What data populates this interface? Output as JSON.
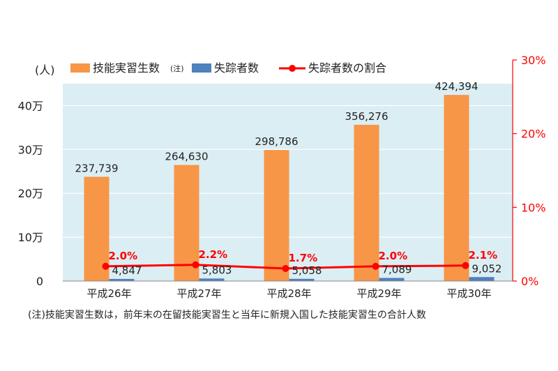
{
  "chart_data": {
    "type": "bar",
    "categories": [
      "平成26年",
      "平成27年",
      "平成28年",
      "平成29年",
      "平成30年"
    ],
    "series": [
      {
        "name": "技能実習生数",
        "name_note": "(注)",
        "values": [
          237739,
          264630,
          298786,
          356276,
          424394
        ],
        "labels": [
          "237,739",
          "264,630",
          "298,786",
          "356,276",
          "424,394"
        ],
        "color": "#f79646",
        "axis": "left"
      },
      {
        "name": "失踪者数",
        "values": [
          4847,
          5803,
          5058,
          7089,
          9052
        ],
        "labels": [
          "4,847",
          "5,803",
          "5,058",
          "7,089",
          "9,052"
        ],
        "color": "#4f81bd",
        "axis": "left"
      },
      {
        "name": "失踪者数の割合",
        "type": "line",
        "values": [
          2.0,
          2.2,
          1.7,
          2.0,
          2.1
        ],
        "labels": [
          "2.0%",
          "2.2%",
          "1.7%",
          "2.0%",
          "2.1%"
        ],
        "color": "#ff0000",
        "axis": "right"
      }
    ],
    "y_unit": "(人)",
    "ylim": [
      0,
      450000
    ],
    "yticks": [
      {
        "value": 0,
        "label": "0"
      },
      {
        "value": 100000,
        "label": "10万"
      },
      {
        "value": 200000,
        "label": "20万"
      },
      {
        "value": 300000,
        "label": "30万"
      },
      {
        "value": 400000,
        "label": "40万"
      }
    ],
    "y2lim": [
      0,
      30
    ],
    "y2ticks": [
      {
        "value": 0,
        "label": "0%"
      },
      {
        "value": 10,
        "label": "10%"
      },
      {
        "value": 20,
        "label": "20%"
      },
      {
        "value": 30,
        "label": "30%"
      }
    ],
    "legend_position": "top",
    "grid": true,
    "plot_background": "#dbeef4",
    "axis_right_color": "#ff0000"
  },
  "footnote": "(注)技能実習生数は，前年末の在留技能実習生と当年に新規入国した技能実習生の合計人数"
}
